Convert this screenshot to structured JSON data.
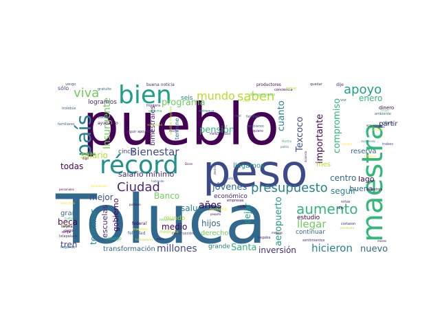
{
  "wordcloud": {
    "words": [
      {
        "text": "Toluca",
        "color": "#31688e"
      },
      {
        "text": "pueblo",
        "color": "#440154"
      },
      {
        "text": "peso",
        "color": "#3e4989"
      },
      {
        "text": "maestra",
        "color": "#35b779"
      },
      {
        "text": "récord",
        "color": "#21918c"
      },
      {
        "text": "bien",
        "color": "#1f9e89"
      },
      {
        "text": "país",
        "color": "#26828e"
      },
      {
        "text": "presupuesto",
        "color": "#26828e"
      },
      {
        "text": "aumento",
        "color": "#35b779"
      },
      {
        "text": "Ciudad",
        "color": "#482878"
      },
      {
        "text": "apoyo",
        "color": "#1f9e89"
      },
      {
        "text": "viva",
        "color": "#6ece58"
      },
      {
        "text": "saben",
        "color": "#b5de2b"
      },
      {
        "text": "mundo",
        "color": "#b5de2b"
      },
      {
        "text": "Bienestar",
        "color": "#3e4989"
      },
      {
        "text": "programa",
        "color": "#6ece58"
      },
      {
        "text": "jóvenes",
        "color": "#31688e"
      },
      {
        "text": "Insurgente",
        "color": "#6ece58"
      },
      {
        "text": "hicieron",
        "color": "#26828e"
      },
      {
        "text": "nuevo",
        "color": "#31688e"
      },
      {
        "text": "Santa",
        "color": "#35b779"
      },
      {
        "text": "inversión",
        "color": "#482878"
      },
      {
        "text": "millones",
        "color": "#3e4989"
      },
      {
        "text": "aeropuerto",
        "color": "#1f9e89"
      },
      {
        "text": "llegar",
        "color": "#6ece58"
      },
      {
        "text": "compromiso",
        "color": "#35b779"
      },
      {
        "text": "importante",
        "color": "#440154"
      },
      {
        "text": "Texcoco",
        "color": "#3e4989"
      },
      {
        "text": "cuanto",
        "color": "#26828e"
      },
      {
        "text": "pensión",
        "color": "#35b779"
      },
      {
        "text": "salud",
        "color": "#26828e"
      },
      {
        "text": "años",
        "color": "#440154"
      },
      {
        "text": "hijos",
        "color": "#31688e"
      },
      {
        "text": "dejar",
        "color": "#1f9e89"
      },
      {
        "text": "centro",
        "color": "#31688e"
      },
      {
        "text": "seguir",
        "color": "#26828e"
      },
      {
        "text": "buena",
        "color": "#31688e"
      },
      {
        "text": "lago",
        "color": "#440154"
      },
      {
        "text": "mes",
        "color": "#b5de2b"
      },
      {
        "text": "enero",
        "color": "#35b779"
      },
      {
        "text": "partir",
        "color": "#482878"
      },
      {
        "text": "reserva",
        "color": "#31688e"
      },
      {
        "text": "llegamos",
        "color": "#21918c"
      },
      {
        "text": "todas",
        "color": "#440154"
      },
      {
        "text": "salario",
        "color": "#b5de2b"
      },
      {
        "text": "salario mínimo",
        "color": "#482878"
      },
      {
        "text": "beca",
        "color": "#440154"
      },
      {
        "text": "tren",
        "color": "#3e4989"
      },
      {
        "text": "mejor",
        "color": "#3e4989"
      },
      {
        "text": "gran",
        "color": "#31688e"
      },
      {
        "text": "terminar",
        "color": "#26828e"
      },
      {
        "text": "escuelas",
        "color": "#482878"
      },
      {
        "text": "gobierno",
        "color": "#440154"
      },
      {
        "text": "Banco",
        "color": "#6ece58"
      },
      {
        "text": "medio",
        "color": "#440154"
      },
      {
        "text": "mundo",
        "color": "#b5de2b"
      },
      {
        "text": "transformación",
        "color": "#31688e"
      },
      {
        "text": "grande",
        "color": "#26828e"
      },
      {
        "text": "derecho",
        "color": "#6ece58"
      },
      {
        "text": "económico",
        "color": "#482878"
      },
      {
        "text": "continuar",
        "color": "#31688e"
      },
      {
        "text": "estudio",
        "color": "#440154"
      },
      {
        "text": "bimestrales",
        "color": "#482878"
      },
      {
        "text": "seis",
        "color": "#26828e"
      },
      {
        "text": "logramos",
        "color": "#482878"
      },
      {
        "text": "sólo",
        "color": "#3e4989"
      },
      {
        "text": "cinco",
        "color": "#3e4989"
      },
      {
        "text": "termine",
        "color": "#31688e"
      },
      {
        "text": "dinero",
        "color": "#440154"
      },
      {
        "text": "obra",
        "color": "#31688e"
      },
      {
        "text": "productores",
        "color": "#440154"
      },
      {
        "text": "buena noticia",
        "color": "#482878"
      },
      {
        "text": "discapacitados",
        "color": "#6ece58"
      },
      {
        "text": "sentimientos",
        "color": "#482878"
      },
      {
        "text": "Hidalgo",
        "color": "#35b779"
      },
      {
        "text": "federal",
        "color": "#440154"
      },
      {
        "text": "felicidad",
        "color": "#31688e"
      },
      {
        "text": "cortaron",
        "color": "#482878"
      },
      {
        "text": "ambiente",
        "color": "#31688e"
      },
      {
        "text": "familias",
        "color": "#31688e"
      },
      {
        "text": "frontera",
        "color": "#482878"
      },
      {
        "text": "sistema",
        "color": "#35b779"
      },
      {
        "text": "ayudando",
        "color": "#440154"
      },
      {
        "text": "seguir apoyando",
        "color": "#482878"
      },
      {
        "text": "adultos mayores",
        "color": "#b5de2b"
      },
      {
        "text": "recursos",
        "color": "#6ece58"
      },
      {
        "text": "medicina",
        "color": "#b5de2b"
      },
      {
        "text": "empresas",
        "color": "#440154"
      },
      {
        "text": "maestros",
        "color": "#440154"
      },
      {
        "text": "Chalco",
        "color": "#fde725"
      },
      {
        "text": "trabes",
        "color": "#3e4989"
      },
      {
        "text": "pandemia",
        "color": "#fde725"
      },
      {
        "text": "construcción",
        "color": "#482878"
      },
      {
        "text": "mandato",
        "color": "#fde725"
      },
      {
        "text": "niños",
        "color": "#482878"
      },
      {
        "text": "dirija",
        "color": "#440154"
      },
      {
        "text": "Ixtapaluca",
        "color": "#482878"
      },
      {
        "text": "llegando",
        "color": "#31688e"
      },
      {
        "text": "vengo",
        "color": "#3e4989"
      },
      {
        "text": "entregue",
        "color": "#26828e"
      },
      {
        "text": "recibieron",
        "color": "#31688e"
      },
      {
        "text": "quiero",
        "color": "#482878"
      },
      {
        "text": "conciencia",
        "color": "#440154"
      },
      {
        "text": "tomar",
        "color": "#b5de2b"
      },
      {
        "text": "quedar",
        "color": "#482878"
      },
      {
        "text": "dije",
        "color": "#482878"
      },
      {
        "text": "voz",
        "color": "#31688e"
      },
      {
        "text": "cuatro",
        "color": "#35b779"
      },
      {
        "text": "tarjeta",
        "color": "#440154"
      },
      {
        "text": "pago",
        "color": "#440154"
      },
      {
        "text": "siempre",
        "color": "#fde725"
      },
      {
        "text": "familiares",
        "color": "#31688e"
      },
      {
        "text": "trolebús",
        "color": "#31688e"
      },
      {
        "text": "Martha",
        "color": "#35b779"
      },
      {
        "text": "patria",
        "color": "#31688e"
      },
      {
        "text": "padre",
        "color": "#482878"
      },
      {
        "text": "casi",
        "color": "#31688e"
      },
      {
        "text": "médica",
        "color": "#440154"
      },
      {
        "text": "económica",
        "color": "#440154"
      },
      {
        "text": "recibiendo",
        "color": "#26828e"
      },
      {
        "text": "Pamela",
        "color": "#482878"
      },
      {
        "text": "Felipe",
        "color": "#6ece58"
      },
      {
        "text": "decirles",
        "color": "#482878"
      },
      {
        "text": "Cuánto",
        "color": "#31688e"
      },
      {
        "text": "llegaba",
        "color": "#482878"
      },
      {
        "text": "mejores",
        "color": "#440154"
      },
      {
        "text": "Dicen",
        "color": "#440154"
      },
      {
        "text": "hablando",
        "color": "#31688e"
      },
      {
        "text": "poquito",
        "color": "#440154"
      },
      {
        "text": "pendiente",
        "color": "#b5de2b"
      },
      {
        "text": "meses",
        "color": "#440154"
      },
      {
        "text": "gratuito",
        "color": "#31688e"
      },
      {
        "text": "garantizado",
        "color": "#fde725"
      },
      {
        "text": "personales",
        "color": "#440154"
      },
      {
        "text": "descuento",
        "color": "#fde725"
      },
      {
        "text": "mismo",
        "color": "#482878"
      },
      {
        "text": "nombre",
        "color": "#fde725"
      },
      {
        "text": "falta",
        "color": "#b5de2b"
      },
      {
        "text": "solidaridad",
        "color": "#b5de2b"
      },
      {
        "text": "públicas",
        "color": "#440154"
      },
      {
        "text": "trabajadores",
        "color": "#b5de2b"
      },
      {
        "text": "países",
        "color": "#31688e"
      },
      {
        "text": "dijo",
        "color": "#440154"
      },
      {
        "text": "cada",
        "color": "#440154"
      },
      {
        "text": "acuerdo",
        "color": "#482878"
      },
      {
        "text": "correcto",
        "color": "#fde725"
      },
      {
        "text": "envío",
        "color": "#440154"
      },
      {
        "text": "digo",
        "color": "#440154"
      },
      {
        "text": "pagar",
        "color": "#31688e"
      }
    ]
  }
}
